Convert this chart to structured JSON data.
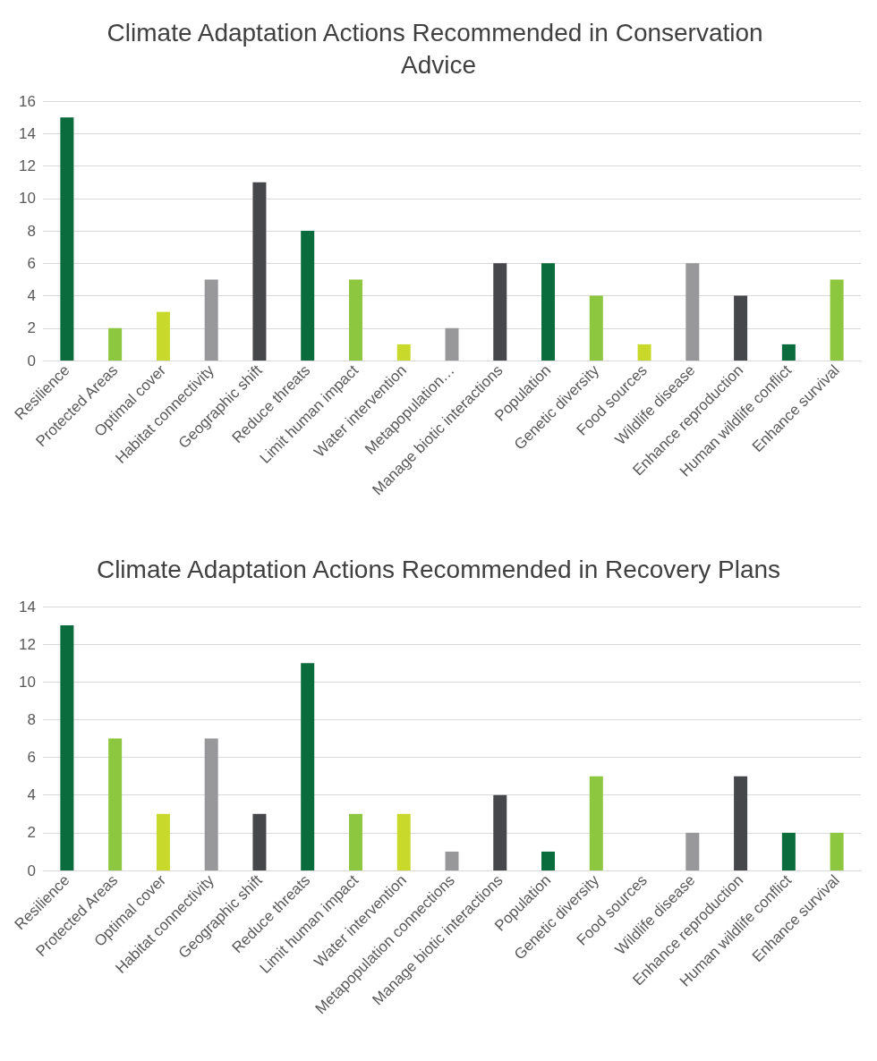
{
  "chart_data": [
    {
      "type": "bar",
      "title": "Climate Adaptation Actions Recommended in Conservation Advice",
      "categories": [
        "Resilience",
        "Protected Areas",
        "Optimal cover",
        "Habitat connectivity",
        "Geographic shift",
        "Reduce threats",
        "Limit human impact",
        "Water intervention",
        "Metapopulation…",
        "Manage biotic interactions",
        "Population",
        "Genetic diversity",
        "Food sources",
        "Wildlife disease",
        "Enhance reproduction",
        "Human wildlife conflict",
        "Enhance survival"
      ],
      "values": [
        15,
        2,
        3,
        5,
        11,
        8,
        5,
        1,
        2,
        6,
        6,
        4,
        1,
        6,
        4,
        1,
        5
      ],
      "colors": [
        "#0a6b3c",
        "#8dc63f",
        "#c8d92b",
        "#98989a",
        "#46474b",
        "#0a6b3c",
        "#8dc63f",
        "#c8d92b",
        "#98989a",
        "#46474b",
        "#0a6b3c",
        "#8dc63f",
        "#c8d92b",
        "#98989a",
        "#46474b",
        "#0a6b3c",
        "#8dc63f"
      ],
      "ylim": [
        0,
        16
      ],
      "yticks": [
        0,
        2,
        4,
        6,
        8,
        10,
        12,
        14,
        16
      ],
      "grid": "y"
    },
    {
      "type": "bar",
      "title": "Climate Adaptation Actions Recommended in Recovery Plans",
      "categories": [
        "Resilience",
        "Protected Areas",
        "Optimal cover",
        "Habitat connectivity",
        "Geographic shift",
        "Reduce threats",
        "Limit human impact",
        "Water intervention",
        "Metapopulation connections",
        "Manage biotic interactions",
        "Population",
        "Genetic diversity",
        "Food sources",
        "Wildlife disease",
        "Enhance reproduction",
        "Human wildlife conflict",
        "Enhance survival"
      ],
      "values": [
        13,
        7,
        3,
        7,
        3,
        11,
        3,
        3,
        1,
        4,
        1,
        5,
        0,
        2,
        5,
        2,
        2
      ],
      "colors": [
        "#0a6b3c",
        "#8dc63f",
        "#c8d92b",
        "#98989a",
        "#46474b",
        "#0a6b3c",
        "#8dc63f",
        "#c8d92b",
        "#98989a",
        "#46474b",
        "#0a6b3c",
        "#8dc63f",
        "#c8d92b",
        "#98989a",
        "#46474b",
        "#0a6b3c",
        "#8dc63f"
      ],
      "ylim": [
        0,
        14
      ],
      "yticks": [
        0,
        2,
        4,
        6,
        8,
        10,
        12,
        14
      ],
      "grid": "y"
    }
  ]
}
